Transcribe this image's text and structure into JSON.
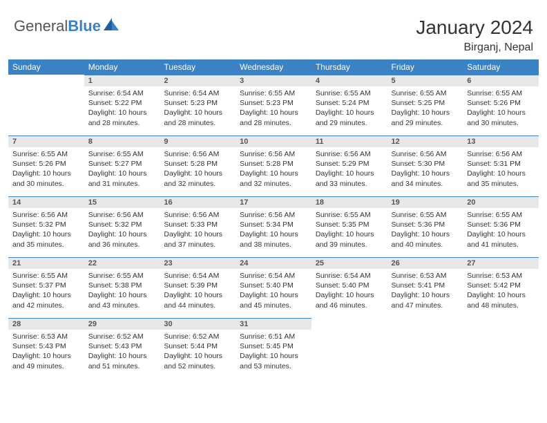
{
  "logo": {
    "text_general": "General",
    "text_blue": "Blue"
  },
  "title": "January 2024",
  "location": "Birganj, Nepal",
  "colors": {
    "header_bg": "#3b82c4",
    "header_fg": "#ffffff",
    "daynum_bg": "#e8e8e8",
    "daynum_fg": "#555555",
    "body_fg": "#333333",
    "rule": "#3b82c4",
    "page_bg": "#ffffff"
  },
  "weekdays": [
    "Sunday",
    "Monday",
    "Tuesday",
    "Wednesday",
    "Thursday",
    "Friday",
    "Saturday"
  ],
  "weeks": [
    [
      null,
      {
        "n": "1",
        "sunrise": "Sunrise: 6:54 AM",
        "sunset": "Sunset: 5:22 PM",
        "day1": "Daylight: 10 hours",
        "day2": "and 28 minutes."
      },
      {
        "n": "2",
        "sunrise": "Sunrise: 6:54 AM",
        "sunset": "Sunset: 5:23 PM",
        "day1": "Daylight: 10 hours",
        "day2": "and 28 minutes."
      },
      {
        "n": "3",
        "sunrise": "Sunrise: 6:55 AM",
        "sunset": "Sunset: 5:23 PM",
        "day1": "Daylight: 10 hours",
        "day2": "and 28 minutes."
      },
      {
        "n": "4",
        "sunrise": "Sunrise: 6:55 AM",
        "sunset": "Sunset: 5:24 PM",
        "day1": "Daylight: 10 hours",
        "day2": "and 29 minutes."
      },
      {
        "n": "5",
        "sunrise": "Sunrise: 6:55 AM",
        "sunset": "Sunset: 5:25 PM",
        "day1": "Daylight: 10 hours",
        "day2": "and 29 minutes."
      },
      {
        "n": "6",
        "sunrise": "Sunrise: 6:55 AM",
        "sunset": "Sunset: 5:26 PM",
        "day1": "Daylight: 10 hours",
        "day2": "and 30 minutes."
      }
    ],
    [
      {
        "n": "7",
        "sunrise": "Sunrise: 6:55 AM",
        "sunset": "Sunset: 5:26 PM",
        "day1": "Daylight: 10 hours",
        "day2": "and 30 minutes."
      },
      {
        "n": "8",
        "sunrise": "Sunrise: 6:55 AM",
        "sunset": "Sunset: 5:27 PM",
        "day1": "Daylight: 10 hours",
        "day2": "and 31 minutes."
      },
      {
        "n": "9",
        "sunrise": "Sunrise: 6:56 AM",
        "sunset": "Sunset: 5:28 PM",
        "day1": "Daylight: 10 hours",
        "day2": "and 32 minutes."
      },
      {
        "n": "10",
        "sunrise": "Sunrise: 6:56 AM",
        "sunset": "Sunset: 5:28 PM",
        "day1": "Daylight: 10 hours",
        "day2": "and 32 minutes."
      },
      {
        "n": "11",
        "sunrise": "Sunrise: 6:56 AM",
        "sunset": "Sunset: 5:29 PM",
        "day1": "Daylight: 10 hours",
        "day2": "and 33 minutes."
      },
      {
        "n": "12",
        "sunrise": "Sunrise: 6:56 AM",
        "sunset": "Sunset: 5:30 PM",
        "day1": "Daylight: 10 hours",
        "day2": "and 34 minutes."
      },
      {
        "n": "13",
        "sunrise": "Sunrise: 6:56 AM",
        "sunset": "Sunset: 5:31 PM",
        "day1": "Daylight: 10 hours",
        "day2": "and 35 minutes."
      }
    ],
    [
      {
        "n": "14",
        "sunrise": "Sunrise: 6:56 AM",
        "sunset": "Sunset: 5:32 PM",
        "day1": "Daylight: 10 hours",
        "day2": "and 35 minutes."
      },
      {
        "n": "15",
        "sunrise": "Sunrise: 6:56 AM",
        "sunset": "Sunset: 5:32 PM",
        "day1": "Daylight: 10 hours",
        "day2": "and 36 minutes."
      },
      {
        "n": "16",
        "sunrise": "Sunrise: 6:56 AM",
        "sunset": "Sunset: 5:33 PM",
        "day1": "Daylight: 10 hours",
        "day2": "and 37 minutes."
      },
      {
        "n": "17",
        "sunrise": "Sunrise: 6:56 AM",
        "sunset": "Sunset: 5:34 PM",
        "day1": "Daylight: 10 hours",
        "day2": "and 38 minutes."
      },
      {
        "n": "18",
        "sunrise": "Sunrise: 6:55 AM",
        "sunset": "Sunset: 5:35 PM",
        "day1": "Daylight: 10 hours",
        "day2": "and 39 minutes."
      },
      {
        "n": "19",
        "sunrise": "Sunrise: 6:55 AM",
        "sunset": "Sunset: 5:36 PM",
        "day1": "Daylight: 10 hours",
        "day2": "and 40 minutes."
      },
      {
        "n": "20",
        "sunrise": "Sunrise: 6:55 AM",
        "sunset": "Sunset: 5:36 PM",
        "day1": "Daylight: 10 hours",
        "day2": "and 41 minutes."
      }
    ],
    [
      {
        "n": "21",
        "sunrise": "Sunrise: 6:55 AM",
        "sunset": "Sunset: 5:37 PM",
        "day1": "Daylight: 10 hours",
        "day2": "and 42 minutes."
      },
      {
        "n": "22",
        "sunrise": "Sunrise: 6:55 AM",
        "sunset": "Sunset: 5:38 PM",
        "day1": "Daylight: 10 hours",
        "day2": "and 43 minutes."
      },
      {
        "n": "23",
        "sunrise": "Sunrise: 6:54 AM",
        "sunset": "Sunset: 5:39 PM",
        "day1": "Daylight: 10 hours",
        "day2": "and 44 minutes."
      },
      {
        "n": "24",
        "sunrise": "Sunrise: 6:54 AM",
        "sunset": "Sunset: 5:40 PM",
        "day1": "Daylight: 10 hours",
        "day2": "and 45 minutes."
      },
      {
        "n": "25",
        "sunrise": "Sunrise: 6:54 AM",
        "sunset": "Sunset: 5:40 PM",
        "day1": "Daylight: 10 hours",
        "day2": "and 46 minutes."
      },
      {
        "n": "26",
        "sunrise": "Sunrise: 6:53 AM",
        "sunset": "Sunset: 5:41 PM",
        "day1": "Daylight: 10 hours",
        "day2": "and 47 minutes."
      },
      {
        "n": "27",
        "sunrise": "Sunrise: 6:53 AM",
        "sunset": "Sunset: 5:42 PM",
        "day1": "Daylight: 10 hours",
        "day2": "and 48 minutes."
      }
    ],
    [
      {
        "n": "28",
        "sunrise": "Sunrise: 6:53 AM",
        "sunset": "Sunset: 5:43 PM",
        "day1": "Daylight: 10 hours",
        "day2": "and 49 minutes."
      },
      {
        "n": "29",
        "sunrise": "Sunrise: 6:52 AM",
        "sunset": "Sunset: 5:43 PM",
        "day1": "Daylight: 10 hours",
        "day2": "and 51 minutes."
      },
      {
        "n": "30",
        "sunrise": "Sunrise: 6:52 AM",
        "sunset": "Sunset: 5:44 PM",
        "day1": "Daylight: 10 hours",
        "day2": "and 52 minutes."
      },
      {
        "n": "31",
        "sunrise": "Sunrise: 6:51 AM",
        "sunset": "Sunset: 5:45 PM",
        "day1": "Daylight: 10 hours",
        "day2": "and 53 minutes."
      },
      null,
      null,
      null
    ]
  ]
}
